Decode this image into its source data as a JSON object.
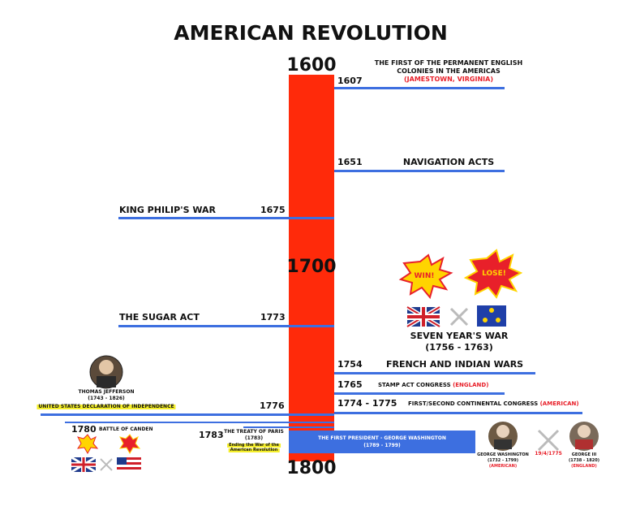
{
  "title": "AMERICAN REVOLUTION",
  "scale": [
    "1600",
    "1700",
    "1800"
  ],
  "events": {
    "jamestown": {
      "year": "1607",
      "lines": [
        "THE FIRST OF THE PERMANENT ENGLISH",
        "COLONIES IN THE AMERICAS"
      ],
      "note": "(JAMESTOWN, VIRGINIA)"
    },
    "navigation": {
      "year": "1651",
      "label": "NAVIGATION ACTS"
    },
    "king_philip": {
      "year": "1675",
      "label": "KING PHILIP'S WAR"
    },
    "sugar": {
      "year": "1773",
      "label": "THE SUGAR ACT"
    },
    "seven_years": {
      "win": "WIN!",
      "lose": "LOSE!",
      "label": "SEVEN YEAR'S WAR",
      "dates": "(1756 - 1763)"
    },
    "french_indian": {
      "year": "1754",
      "label": "FRENCH AND INDIAN WARS"
    },
    "stamp": {
      "year": "1765",
      "label": "STAMP ACT CONGRESS",
      "note": "(ENGLAND)"
    },
    "congress": {
      "year": "1774 - 1775",
      "label": "FIRST/SECOND CONTINENTAL CONGRESS",
      "note": "(AMERICAN)"
    },
    "independence": {
      "year": "1776",
      "person": "THOMAS JEFFERSON",
      "dates": "(1743 - 1826)",
      "label": "UNITED STATES DECLARATION OF INDEPENDENCE"
    },
    "camden": {
      "year": "1780",
      "label": "BATTLE OF CANDEN"
    },
    "paris": {
      "year": "1783",
      "label": "THE TREATY OF PARIS",
      "dates": "(1783)",
      "note": [
        "Ending the War of the",
        "American Revolution"
      ]
    },
    "president": {
      "label": "THE FIRST PRESIDENT - GEORGE WASHINGTON",
      "dates": "(1789 - 1799)"
    }
  },
  "war": {
    "left": {
      "name": "GEORGE WASHINGTON",
      "dates": "(1732 - 1799)",
      "side": "(AMERICAN)"
    },
    "date": "19/4/1775",
    "right": {
      "name": "GEORGE III",
      "dates": "(1738 - 1820)",
      "side": "(ENGLAND)"
    }
  }
}
